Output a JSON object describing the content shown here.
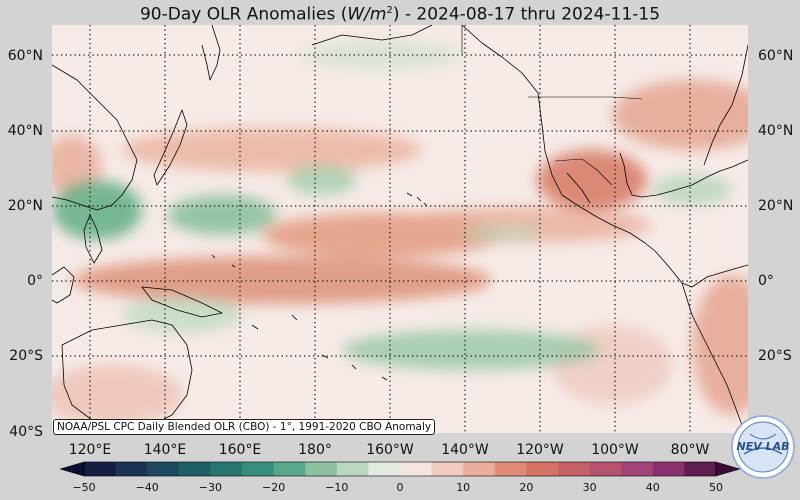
{
  "title": "90-Day OLR Anomalies (W/m²) - 2024-08-17 thru 2024-11-15",
  "title_parts": {
    "prefix": "90-Day OLR Anomalies (",
    "unit_base": "W/m",
    "unit_exp": "2",
    "suffix": ") - 2024-08-17 thru 2024-11-15"
  },
  "lat_labels": [
    "60°N",
    "40°N",
    "20°N",
    "0°",
    "20°S",
    "40°S"
  ],
  "lon_labels": [
    "120°E",
    "140°E",
    "160°E",
    "180°",
    "160°W",
    "140°W",
    "120°W",
    "100°W",
    "80°W"
  ],
  "credit": "NOAA/PSL CPC Daily Blended OLR (CBO) - 1°, 1991-2020 CBO Anomaly",
  "colorbar": {
    "ticks": [
      "−50",
      "−40",
      "−30",
      "−20",
      "−10",
      "0",
      "10",
      "20",
      "30",
      "40",
      "50"
    ],
    "range": [
      -50,
      50
    ],
    "stops": [
      {
        "v": -50,
        "c": "#14143c"
      },
      {
        "v": -40,
        "c": "#1f3d5c"
      },
      {
        "v": -30,
        "c": "#1f6b6b"
      },
      {
        "v": -20,
        "c": "#3f9a7f"
      },
      {
        "v": -10,
        "c": "#a6cfae"
      },
      {
        "v": 0,
        "c": "#f7f3f0"
      },
      {
        "v": 10,
        "c": "#f0bcae"
      },
      {
        "v": 20,
        "c": "#d97a62"
      },
      {
        "v": 30,
        "c": "#bd5a6a"
      },
      {
        "v": 40,
        "c": "#9c3c7e"
      },
      {
        "v": 50,
        "c": "#4a1242"
      }
    ]
  },
  "logo_text": "NEV LAB",
  "colors": {
    "background": "#d3d3d3",
    "map_base": "#f7ebe7",
    "positive_anomaly": "#e6a38d",
    "negative_anomaly": "#7dbc95",
    "gridline": "#111111",
    "coastline": "#000000"
  },
  "grid": "dotted",
  "map_extent": {
    "lon_min": 100,
    "lon_max": 290,
    "lat_min": -40,
    "lat_max": 68
  }
}
